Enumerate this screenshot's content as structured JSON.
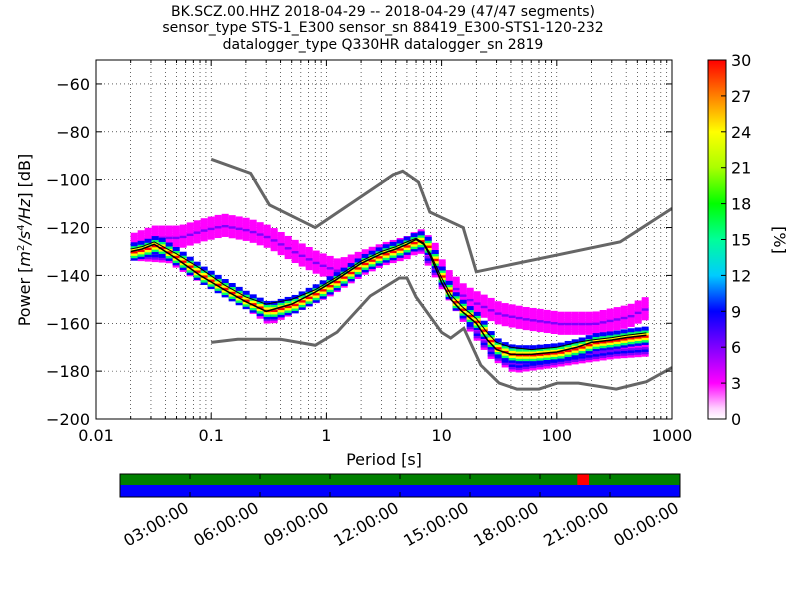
{
  "chart_data": {
    "type": "heatmap",
    "title": [
      "BK.SCZ.00.HHZ   2018-04-29 -- 2018-04-29  (47/47 segments)",
      "sensor_type STS-1_E300 sensor_sn 88419_E300-STS1-120-232",
      "datalogger_type Q330HR datalogger_sn 2819"
    ],
    "xlabel": "Period [s]",
    "ylabel": "Power [m²/s⁴/Hz] [dB]",
    "ylabel_parts": {
      "pre": "Power [",
      "m": "m",
      "two": "2",
      "s": "/s",
      "four": "4",
      "hz": "/Hz",
      "post": "] [dB]"
    },
    "x_scale": "log",
    "xlim": [
      0.01,
      1000
    ],
    "ylim": [
      -200,
      -50
    ],
    "x_ticks": [
      0.01,
      0.1,
      1,
      10,
      100,
      1000
    ],
    "x_tick_labels": [
      "0.01",
      "0.1",
      "1",
      "10",
      "100",
      "1000"
    ],
    "y_ticks": [
      -200,
      -180,
      -160,
      -140,
      -120,
      -100,
      -80,
      -60
    ],
    "y_tick_labels": [
      "−200",
      "−180",
      "−160",
      "−140",
      "−120",
      "−100",
      "−80",
      "−60"
    ],
    "grid": true,
    "colorbar": {
      "label": "[%]",
      "min": 0,
      "max": 30,
      "ticks": [
        0,
        3,
        6,
        9,
        12,
        15,
        18,
        21,
        24,
        27,
        30
      ],
      "tick_labels": [
        "0",
        "3",
        "6",
        "9",
        "12",
        "15",
        "18",
        "21",
        "24",
        "27",
        "30"
      ],
      "colormap": [
        "#ffffff",
        "#ff00ff",
        "#8000ff",
        "#0000ff",
        "#00ccff",
        "#00ff66",
        "#66ff00",
        "#ffff00",
        "#ff8000",
        "#ff0000"
      ]
    },
    "nhnm": {
      "x": [
        0.1,
        0.22,
        0.32,
        0.8,
        3.8,
        4.6,
        6.3,
        7.9,
        15.4,
        20,
        354.8,
        1000
      ],
      "y": [
        -91.5,
        -97.4,
        -110.5,
        -120,
        -98,
        -96.5,
        -101,
        -113.5,
        -120,
        -138.5,
        -126,
        -112
      ]
    },
    "nlnm": {
      "x": [
        0.1,
        0.17,
        0.4,
        0.8,
        1.24,
        2.4,
        4.3,
        5,
        6,
        10,
        12,
        15.6,
        21.9,
        31.6,
        45,
        70,
        101,
        154,
        328,
        600,
        1000
      ],
      "y": [
        -168,
        -166.7,
        -166.7,
        -169.2,
        -163.7,
        -148.6,
        -141.1,
        -141.1,
        -149,
        -163.8,
        -166.2,
        -162.1,
        -177.5,
        -185,
        -187.5,
        -187.5,
        -185,
        -185,
        -187.5,
        -184.4,
        -178.5
      ]
    },
    "mode": {
      "x": [
        0.02,
        0.025,
        0.032,
        0.05,
        0.08,
        0.13,
        0.2,
        0.3,
        0.5,
        0.8,
        1.2,
        2,
        3,
        4,
        5,
        6,
        7,
        8,
        10,
        12,
        15,
        20,
        25,
        30,
        40,
        60,
        100,
        150,
        200,
        300,
        400,
        600
      ],
      "y": [
        -130,
        -129,
        -127,
        -133,
        -140,
        -146,
        -151,
        -155,
        -152,
        -147,
        -142,
        -135,
        -131,
        -129,
        -127,
        -125,
        -127,
        -132,
        -143,
        -150,
        -155,
        -160,
        -167,
        -171,
        -173,
        -173,
        -172,
        -170,
        -168,
        -167,
        -166,
        -165
      ]
    },
    "mean": {
      "x": [
        0.02,
        0.025,
        0.032,
        0.05,
        0.08,
        0.13,
        0.2,
        0.3,
        0.5,
        0.8,
        1.2,
        2,
        3,
        4,
        5,
        6,
        7,
        8,
        10,
        12,
        15,
        20,
        25,
        30,
        40,
        60,
        100,
        150,
        200,
        300,
        400,
        600
      ],
      "y": [
        -129,
        -128,
        -126,
        -131,
        -137,
        -144,
        -149,
        -152,
        -150,
        -146,
        -141,
        -134,
        -130,
        -128,
        -126,
        -124.5,
        -126.5,
        -131,
        -141,
        -148,
        -153,
        -158,
        -164,
        -168,
        -170,
        -171,
        -170,
        -168,
        -167,
        -166,
        -165,
        -164
      ]
    },
    "density_bands": [
      {
        "name": "main",
        "x": [
          0.02,
          0.025,
          0.032,
          0.05,
          0.08,
          0.13,
          0.2,
          0.3,
          0.5,
          0.8,
          1.2,
          2,
          3,
          4,
          5,
          6,
          7,
          8,
          10,
          12,
          15,
          20,
          25,
          30,
          40,
          60,
          100,
          150,
          200,
          300,
          400,
          600
        ],
        "y": [
          -130,
          -129,
          -127,
          -133,
          -140,
          -146,
          -151,
          -155,
          -152,
          -147,
          -142,
          -135,
          -131,
          -129,
          -127,
          -125,
          -127,
          -132,
          -143,
          -150,
          -155,
          -160,
          -167,
          -171,
          -173,
          -173,
          -172,
          -170,
          -168,
          -167,
          -166,
          -165
        ],
        "spread": 3,
        "p": 24
      },
      {
        "name": "upper-tail",
        "x": [
          0.02,
          0.03,
          0.05,
          0.08,
          0.12,
          0.2,
          0.3,
          0.5,
          0.8,
          1.2,
          2,
          3,
          5,
          6,
          8,
          10,
          15,
          20,
          30,
          50,
          100,
          200,
          400,
          600
        ],
        "y": [
          -127,
          -124,
          -124,
          -121,
          -119,
          -121,
          -124,
          -130,
          -135,
          -138,
          -134,
          -131,
          -128,
          -125,
          -130,
          -141,
          -149,
          -152,
          -156,
          -158,
          -160,
          -160,
          -157,
          -153
        ],
        "spread": 4,
        "p": 3
      },
      {
        "name": "lower-tail",
        "x": [
          0.02,
          0.04,
          0.08,
          0.15,
          0.3,
          0.5,
          1,
          2,
          4,
          6,
          10,
          15,
          25,
          40,
          80,
          150,
          300,
          600
        ],
        "y": [
          -131,
          -132,
          -141,
          -148,
          -158,
          -153,
          -146,
          -137,
          -130,
          -127,
          -145,
          -158,
          -172,
          -178,
          -176,
          -174,
          -172,
          -171
        ],
        "spread": 2,
        "p": 6
      }
    ],
    "timeline": {
      "tick_labels": [
        "03:00:00",
        "06:00:00",
        "09:00:00",
        "12:00:00",
        "15:00:00",
        "18:00:00",
        "21:00:00",
        "00:00:00"
      ],
      "top_color": "#008000",
      "bottom_color": "#0000ff",
      "gap_color": "#ff0000",
      "gap_start_hour": 19.6,
      "gap_end_hour": 20.1
    }
  }
}
